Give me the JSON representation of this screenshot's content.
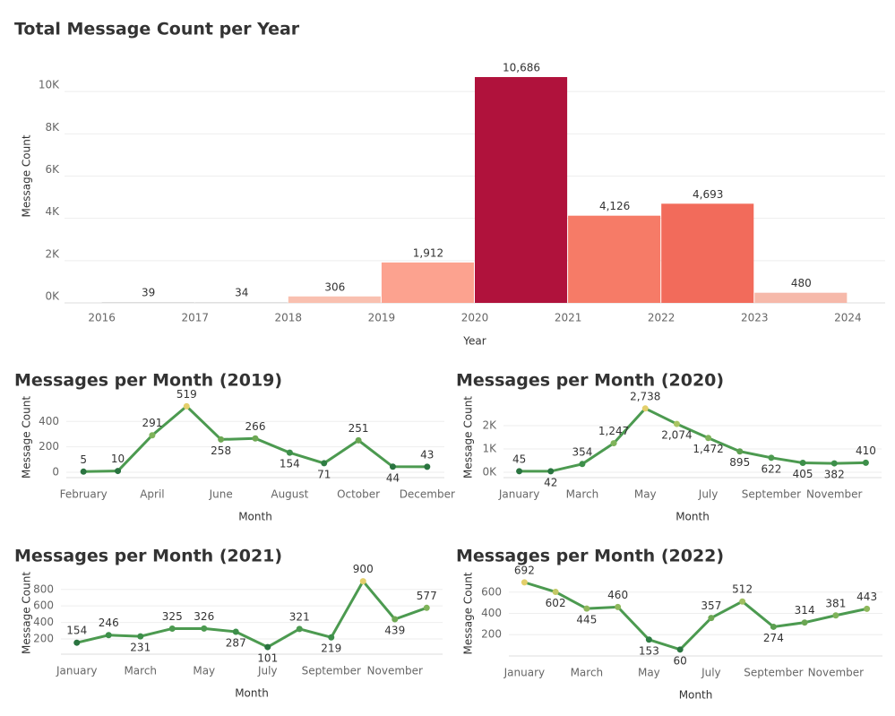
{
  "chart_data": [
    {
      "type": "histogram",
      "title": "Total Message Count per Year",
      "x_label": "Year",
      "y_label": "Message Count",
      "bins": [
        2016,
        2017,
        2018,
        2019,
        2020,
        2021,
        2022,
        2023,
        2024
      ],
      "values": [
        39,
        34,
        306,
        1912,
        10686,
        4126,
        4693,
        480
      ],
      "value_labels": [
        "39",
        "34",
        "306",
        "1,912",
        "10,686",
        "4,126",
        "4,693",
        "480"
      ],
      "colors": [
        "#d9d9d9",
        "#d9d9d9",
        "#f9c0b0",
        "#fca28f",
        "#b0123c",
        "#f67b67",
        "#f26b5b",
        "#f6b9aa"
      ],
      "ylim": [
        0,
        12000
      ],
      "yticks": [
        {
          "value": 0,
          "label": "0K"
        },
        {
          "value": 2000,
          "label": "2K"
        },
        {
          "value": 4000,
          "label": "4K"
        },
        {
          "value": 6000,
          "label": "6K"
        },
        {
          "value": 8000,
          "label": "8K"
        },
        {
          "value": 10000,
          "label": "10K"
        }
      ],
      "grid": true
    },
    {
      "type": "line",
      "title": "Messages per Month (2019)",
      "x_label": "Month",
      "y_label": "Message Count",
      "categories": [
        "February",
        null,
        "April",
        null,
        "June",
        null,
        "August",
        null,
        "October",
        null,
        "December"
      ],
      "values": [
        5,
        10,
        291,
        519,
        258,
        266,
        154,
        71,
        251,
        44,
        43
      ],
      "color": "#4c9a50",
      "point_colors": [
        "#2a7440",
        "#2a7440",
        "#7fb35a",
        "#e3cf6b",
        "#6ea854",
        "#6ea854",
        "#3d8f4a",
        "#2e7d43",
        "#6aa653",
        "#2a7440",
        "#2a7440"
      ],
      "ylim": [
        0,
        550
      ],
      "yticks": [
        0,
        200,
        400
      ],
      "grid": true
    },
    {
      "type": "line",
      "title": "Messages per Month (2020)",
      "x_label": "Month",
      "y_label": "Message Count",
      "categories": [
        "January",
        null,
        "March",
        null,
        "May",
        null,
        "July",
        null,
        "September",
        null,
        "November",
        null
      ],
      "values": [
        45,
        42,
        354,
        1247,
        2738,
        2074,
        1472,
        895,
        622,
        405,
        382,
        410
      ],
      "value_labels": [
        "45",
        "42",
        "354",
        "1,247",
        "2,738",
        "2,074",
        "1,472",
        "895",
        "622",
        "405",
        "382",
        "410"
      ],
      "color": "#4c9a50",
      "point_colors": [
        "#2a7440",
        "#2a7440",
        "#3d8f4a",
        "#7fb35a",
        "#e3cf6b",
        "#a9c463",
        "#7fb35a",
        "#5c9f51",
        "#4c9a50",
        "#3d8f4a",
        "#3d8f4a",
        "#3d8f4a"
      ],
      "ylim": [
        0,
        3000
      ],
      "yticks": [
        {
          "value": 0,
          "label": "0K"
        },
        {
          "value": 1000,
          "label": "1K"
        },
        {
          "value": 2000,
          "label": "2K"
        }
      ],
      "grid": true
    },
    {
      "type": "line",
      "title": "Messages per Month (2021)",
      "x_label": "Month",
      "y_label": "Message Count",
      "categories": [
        "January",
        null,
        "March",
        null,
        "May",
        null,
        "July",
        null,
        "September",
        null,
        "November",
        null
      ],
      "values": [
        154,
        246,
        231,
        325,
        326,
        287,
        101,
        321,
        219,
        900,
        439,
        577
      ],
      "color": "#4c9a50",
      "point_colors": [
        "#2a7440",
        "#3d8f4a",
        "#3d8f4a",
        "#4c9a50",
        "#4c9a50",
        "#3d8f4a",
        "#2a7440",
        "#4c9a50",
        "#3d8f4a",
        "#e3cf6b",
        "#6ea854",
        "#7fb35a"
      ],
      "ylim": [
        80,
        950
      ],
      "yticks": [
        200,
        400,
        600,
        800
      ],
      "grid": true
    },
    {
      "type": "line",
      "title": "Messages per Month (2022)",
      "x_label": "Month",
      "y_label": "Message Count",
      "categories": [
        "January",
        null,
        "March",
        null,
        "May",
        null,
        "July",
        null,
        "September",
        null,
        "November",
        null
      ],
      "values": [
        692,
        602,
        445,
        460,
        153,
        60,
        357,
        512,
        274,
        314,
        381,
        443
      ],
      "color": "#4c9a50",
      "point_colors": [
        "#e3cf6b",
        "#c3c866",
        "#8fb85c",
        "#8fb85c",
        "#2e7d43",
        "#2a7440",
        "#6ea854",
        "#9fbf60",
        "#5c9f51",
        "#6aa653",
        "#7fb35a",
        "#8fb85c"
      ],
      "ylim": [
        50,
        750
      ],
      "yticks": [
        200,
        400,
        600
      ],
      "grid": true
    }
  ]
}
